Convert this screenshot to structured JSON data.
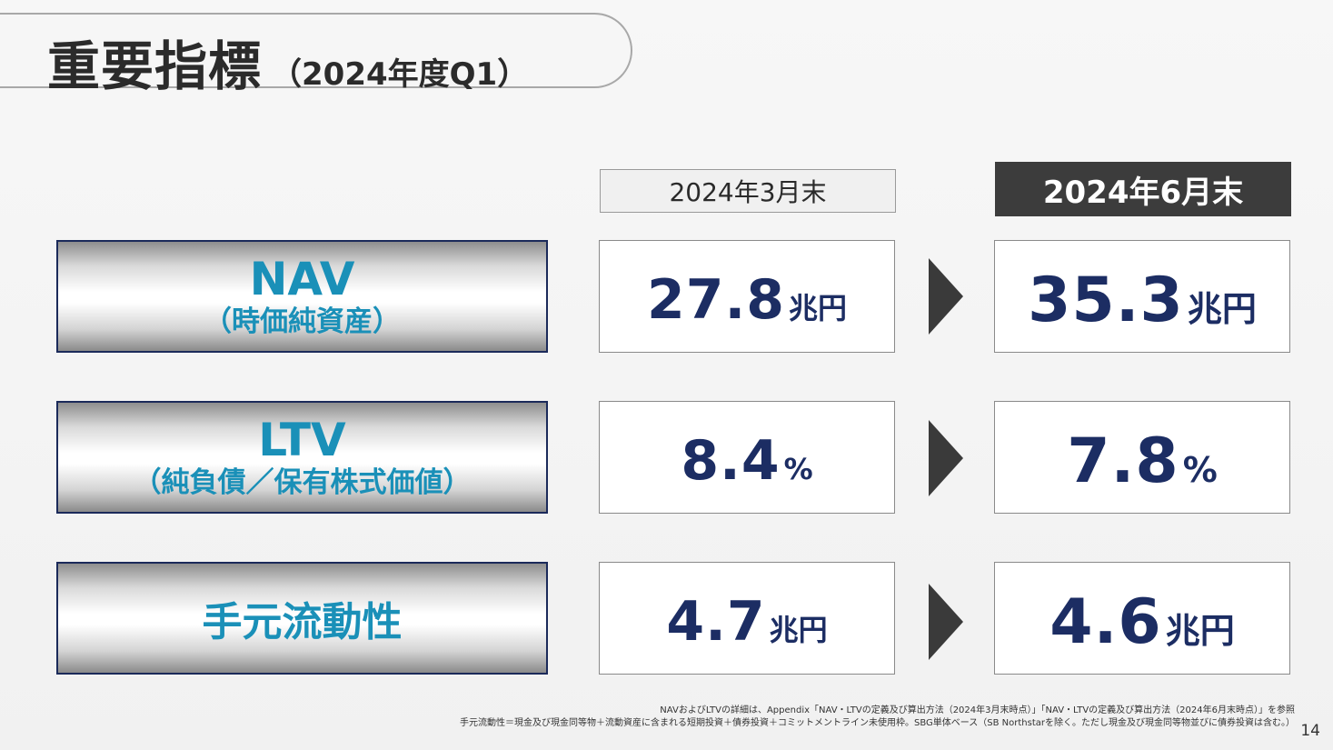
{
  "title": {
    "main": "重要指標",
    "sub": "（2024年度Q1）"
  },
  "columns": {
    "previous": "2024年3月末",
    "current": "2024年6月末"
  },
  "metrics": [
    {
      "label": "NAV",
      "sublabel": "（時価純資産）",
      "previous": {
        "value": "27.8",
        "unit": "兆円"
      },
      "current": {
        "value": "35.3",
        "unit": "兆円"
      }
    },
    {
      "label": "LTV",
      "sublabel": "（純負債／保有株式価値）",
      "previous": {
        "value": "8.4",
        "unit": "%"
      },
      "current": {
        "value": "7.8",
        "unit": "%"
      }
    },
    {
      "label": "手元流動性",
      "previous": {
        "value": "4.7",
        "unit": "兆円"
      },
      "current": {
        "value": "4.6",
        "unit": "兆円"
      }
    }
  ],
  "footnotes": [
    "NAVおよびLTVの詳細は、Appendix「NAV・LTVの定義及び算出方法（2024年3月末時点）」「NAV・LTVの定義及び算出方法（2024年6月末時点）」を参照",
    "手元流動性＝現金及び現金同等物＋流動資産に含まれる短期投資＋債券投資＋コミットメントライン未使用枠。SBG単体ベース（SB Northstarを除く。ただし現金及び現金同等物並びに債券投資は含む。）"
  ],
  "page_number": "14",
  "colors": {
    "label_text": "#1a90b8",
    "value_text": "#1c2d63",
    "current_header_bg": "#3c3c3c",
    "label_border": "#1b2a5a"
  }
}
